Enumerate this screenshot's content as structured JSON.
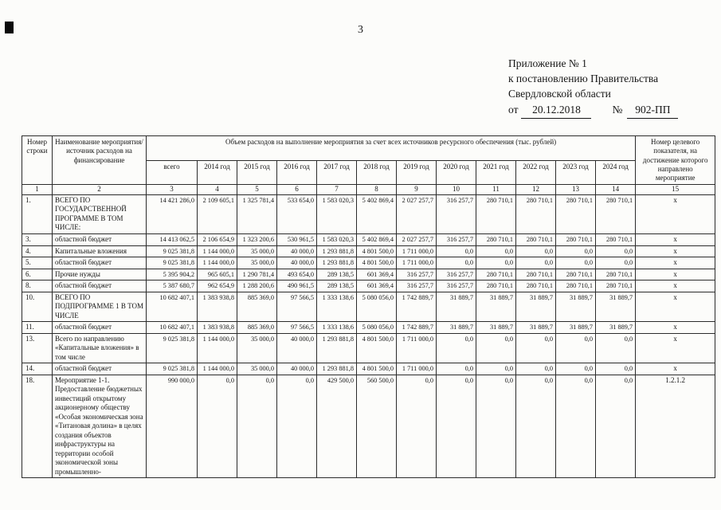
{
  "page": {
    "number": "3"
  },
  "annex": {
    "line1": "Приложение № 1",
    "line2": "к постановлению Правительства",
    "line3": "Свердловской области",
    "from_label": "от",
    "date": "20.12.2018",
    "no_label": "№",
    "number": "902-ПП"
  },
  "table": {
    "header": {
      "row_number": "Номер строки",
      "name": "Наименование мероприятия/источник расходов на финансирование",
      "volume": "Объем расходов на выполнение мероприятия за счет всех источников ресурсного обеспечения (тыс. рублей)",
      "target": "Номер целевого показателя, на достижение которого направлено мероприятие",
      "years": [
        "всего",
        "2014 год",
        "2015 год",
        "2016 год",
        "2017 год",
        "2018 год",
        "2019 год",
        "2020 год",
        "2021 год",
        "2022 год",
        "2023 год",
        "2024 год"
      ],
      "index": [
        "1",
        "2",
        "3",
        "4",
        "5",
        "6",
        "7",
        "8",
        "9",
        "10",
        "11",
        "12",
        "13",
        "14",
        "15"
      ]
    },
    "rows": [
      {
        "num": "1.",
        "name": "ВСЕГО ПО ГОСУДАРСТВЕННОЙ ПРОГРАММЕ В ТОМ ЧИСЛЕ:",
        "values": [
          "14 421 286,0",
          "2 109 605,1",
          "1 325 781,4",
          "533 654,0",
          "1 583 020,3",
          "5 402 869,4",
          "2 027 257,7",
          "316 257,7",
          "280 710,1",
          "280 710,1",
          "280 710,1",
          "280 710,1"
        ],
        "target": "x"
      },
      {
        "num": "3.",
        "name": "областной бюджет",
        "values": [
          "14 413 062,5",
          "2 106 654,9",
          "1 323 200,6",
          "530 961,5",
          "1 583 020,3",
          "5 402 869,4",
          "2 027 257,7",
          "316 257,7",
          "280 710,1",
          "280 710,1",
          "280 710,1",
          "280 710,1"
        ],
        "target": "x"
      },
      {
        "num": "4.",
        "name": "Капитальные вложения",
        "values": [
          "9 025 381,8",
          "1 144 000,0",
          "35 000,0",
          "40 000,0",
          "1 293 881,8",
          "4 801 500,0",
          "1 711 000,0",
          "0,0",
          "0,0",
          "0,0",
          "0,0",
          "0,0"
        ],
        "target": "x"
      },
      {
        "num": "5.",
        "name": "областной бюджет",
        "values": [
          "9 025 381,8",
          "1 144 000,0",
          "35 000,0",
          "40 000,0",
          "1 293 881,8",
          "4 801 500,0",
          "1 711 000,0",
          "0,0",
          "0,0",
          "0,0",
          "0,0",
          "0,0"
        ],
        "target": "x"
      },
      {
        "num": "6.",
        "name": "Прочие нужды",
        "values": [
          "5 395 904,2",
          "965 605,1",
          "1 290 781,4",
          "493 654,0",
          "289 138,5",
          "601 369,4",
          "316 257,7",
          "316 257,7",
          "280 710,1",
          "280 710,1",
          "280 710,1",
          "280 710,1"
        ],
        "target": "x"
      },
      {
        "num": "8.",
        "name": "областной бюджет",
        "values": [
          "5 387 680,7",
          "962 654,9",
          "1 288 200,6",
          "490 961,5",
          "289 138,5",
          "601 369,4",
          "316 257,7",
          "316 257,7",
          "280 710,1",
          "280 710,1",
          "280 710,1",
          "280 710,1"
        ],
        "target": "x"
      },
      {
        "num": "10.",
        "name": "ВСЕГО ПО ПОДПРОГРАММЕ 1 В ТОМ ЧИСЛЕ",
        "values": [
          "10 682 407,1",
          "1 383 938,8",
          "885 369,0",
          "97 566,5",
          "1 333 138,6",
          "5 080 056,0",
          "1 742 889,7",
          "31 889,7",
          "31 889,7",
          "31 889,7",
          "31 889,7",
          "31 889,7"
        ],
        "target": "x"
      },
      {
        "num": "11.",
        "name": "областной бюджет",
        "values": [
          "10 682 407,1",
          "1 383 938,8",
          "885 369,0",
          "97 566,5",
          "1 333 138,6",
          "5 080 056,0",
          "1 742 889,7",
          "31 889,7",
          "31 889,7",
          "31 889,7",
          "31 889,7",
          "31 889,7"
        ],
        "target": "x"
      },
      {
        "num": "13.",
        "name": "Всего по направлению «Капитальные вложения» в том числе",
        "values": [
          "9 025 381,8",
          "1 144 000,0",
          "35 000,0",
          "40 000,0",
          "1 293 881,8",
          "4 801 500,0",
          "1 711 000,0",
          "0,0",
          "0,0",
          "0,0",
          "0,0",
          "0,0"
        ],
        "target": "x"
      },
      {
        "num": "14.",
        "name": "областной бюджет",
        "values": [
          "9 025 381,8",
          "1 144 000,0",
          "35 000,0",
          "40 000,0",
          "1 293 881,8",
          "4 801 500,0",
          "1 711 000,0",
          "0,0",
          "0,0",
          "0,0",
          "0,0",
          "0,0"
        ],
        "target": "x"
      },
      {
        "num": "18.",
        "name": "Мероприятие 1-1. Предоставление бюджетных инвестиций открытому акционерному обществу «Особая экономическая зона «Титановая долина» в целях создания объектов инфраструктуры на территории особой экономической зоны промышленно-",
        "values": [
          "990 000,0",
          "0,0",
          "0,0",
          "0,0",
          "429 500,0",
          "560 500,0",
          "0,0",
          "0,0",
          "0,0",
          "0,0",
          "0,0",
          "0,0"
        ],
        "target": "1.2.1.2"
      }
    ]
  }
}
